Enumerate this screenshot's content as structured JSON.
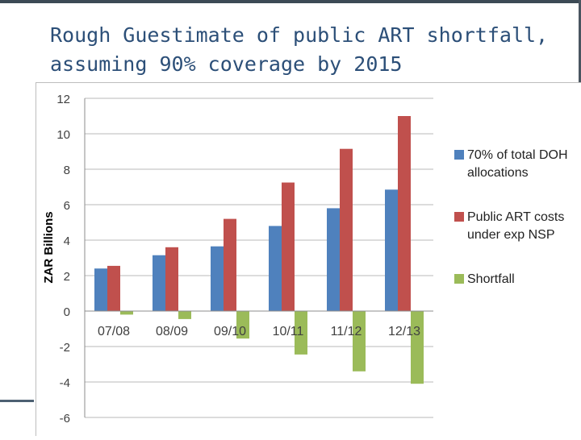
{
  "slide": {
    "title_line1": "Rough Guestimate of public ART shortfall,",
    "title_line2": "assuming 90% coverage by 2015"
  },
  "chart_data": {
    "type": "bar",
    "title": "",
    "xlabel": "",
    "ylabel": "ZAR Billions",
    "ylim": [
      -6,
      12
    ],
    "yticks": [
      12,
      10,
      8,
      6,
      4,
      2,
      0,
      -2,
      -4,
      -6
    ],
    "grid": true,
    "legend_position": "right",
    "categories": [
      "07/08",
      "08/09",
      "09/10",
      "10/11",
      "11/12",
      "12/13"
    ],
    "series": [
      {
        "name": "70% of total DOH allocations",
        "color": "#4f81bd",
        "values": [
          2.4,
          3.15,
          3.65,
          4.8,
          5.8,
          6.85
        ]
      },
      {
        "name": "Public ART costs under exp NSP",
        "color": "#c0504d",
        "values": [
          2.55,
          3.6,
          5.2,
          7.25,
          9.15,
          11.0
        ]
      },
      {
        "name": "Shortfall",
        "color": "#9bbb59",
        "values": [
          -0.2,
          -0.45,
          -1.55,
          -2.45,
          -3.4,
          -4.1
        ]
      }
    ]
  }
}
